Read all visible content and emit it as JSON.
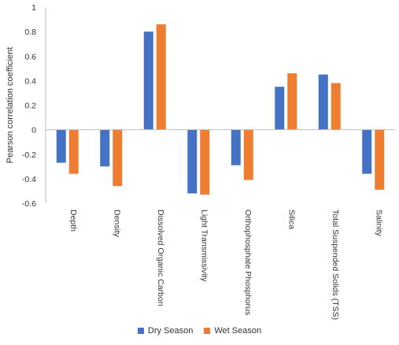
{
  "chart_data": {
    "type": "bar",
    "ylabel": "Pearson correlation coefficient",
    "xlabel": "",
    "ylim": [
      -0.6,
      1
    ],
    "yticks": [
      1,
      0.8,
      0.6,
      0.4,
      0.2,
      0,
      -0.2,
      -0.4,
      -0.6
    ],
    "categories": [
      "Depth",
      "Density",
      "Dissolved Organic Carbon",
      "Light Transmissivity",
      "Orthophosphate Phosphorus",
      "Silica",
      "Total Suspended Solids (TSS)",
      "Salinity"
    ],
    "series": [
      {
        "name": "Dry Season",
        "color": "#4472C4",
        "values": [
          -0.27,
          -0.3,
          0.8,
          -0.52,
          -0.29,
          0.35,
          0.45,
          -0.36
        ]
      },
      {
        "name": "Wet Season",
        "color": "#ED7D31",
        "values": [
          -0.36,
          -0.46,
          0.86,
          -0.53,
          -0.41,
          0.46,
          0.38,
          -0.49
        ]
      }
    ],
    "legend_position": "bottom",
    "grid": false
  }
}
